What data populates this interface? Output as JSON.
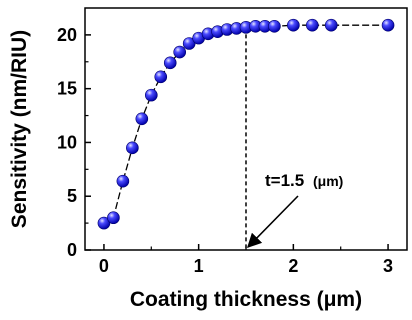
{
  "chart_data": {
    "type": "scatter",
    "xlabel": "Coating thickness (μm)",
    "ylabel": "Sensitivity (nm/RIU)",
    "xlim": [
      -0.2,
      3.2
    ],
    "ylim": [
      0,
      22.5
    ],
    "xticks": [
      0,
      1,
      2,
      3
    ],
    "yticks": [
      0,
      5,
      10,
      15,
      20
    ],
    "grid": false,
    "marker_color": "#1a1aff",
    "series": [
      {
        "x": [
          0,
          0.1,
          0.2,
          0.3,
          0.4,
          0.5,
          0.6,
          0.7,
          0.8,
          0.9,
          1.0,
          1.1,
          1.2,
          1.3,
          1.4,
          1.5,
          1.6,
          1.7,
          1.8,
          2.0,
          2.2,
          2.4,
          3.0
        ],
        "y": [
          2.5,
          3.0,
          6.4,
          9.5,
          12.2,
          14.4,
          16.1,
          17.4,
          18.4,
          19.2,
          19.7,
          20.1,
          20.3,
          20.5,
          20.6,
          20.7,
          20.8,
          20.8,
          20.8,
          20.9,
          20.9,
          20.9,
          20.9
        ]
      }
    ],
    "annotation": {
      "text_main": "t=1.5",
      "text_unit": "(μm)",
      "x": 1.5
    }
  }
}
